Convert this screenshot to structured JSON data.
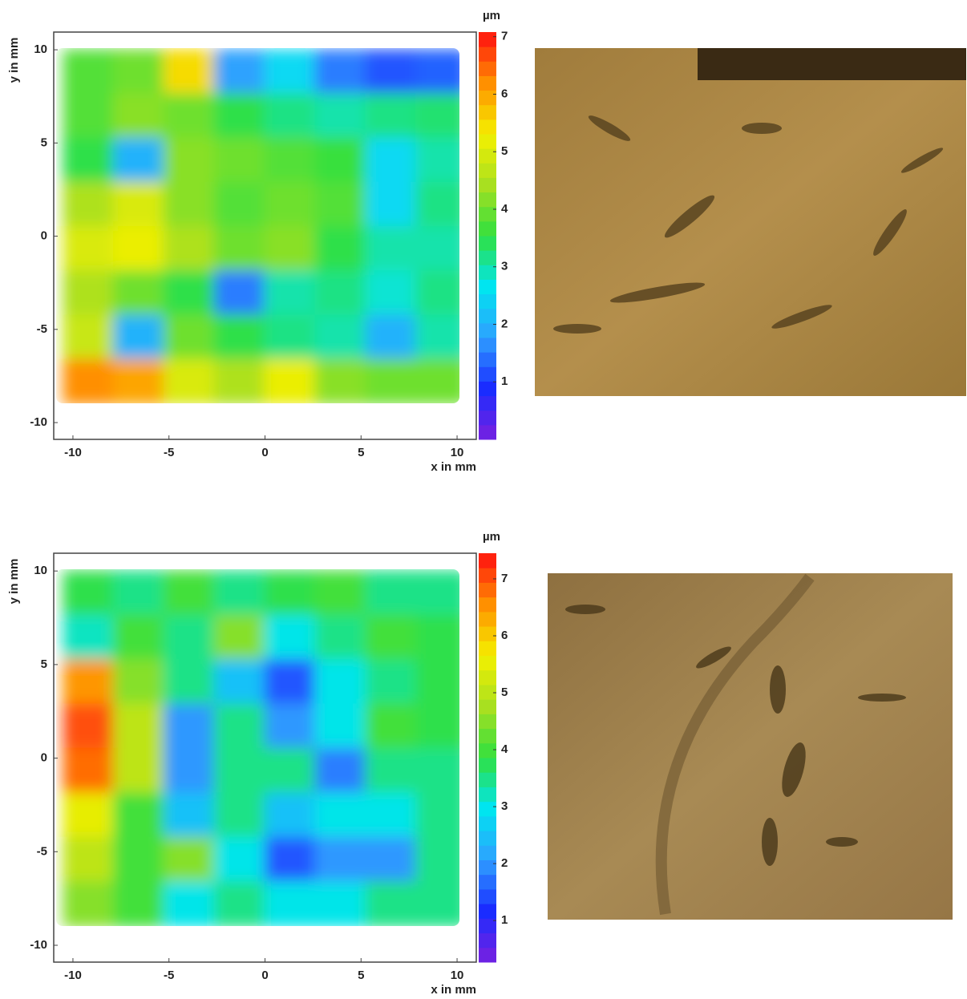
{
  "chart_data": [
    {
      "type": "heatmap",
      "xlabel": "x in mm",
      "ylabel": "y in mm",
      "colorbar_label": "µm",
      "xlim": [
        -11,
        11
      ],
      "ylim": [
        -10.9,
        10.95
      ],
      "xticks": [
        -10,
        -5,
        0,
        5,
        10
      ],
      "yticks": [
        -10,
        -5,
        0,
        5,
        10
      ],
      "clim": [
        0,
        7.08
      ],
      "cticks": [
        1,
        2,
        3,
        4,
        5,
        6,
        7
      ],
      "colormap": [
        "#7a20e0",
        "#1a2cff",
        "#2fa0ff",
        "#00e5f0",
        "#30e040",
        "#a8e020",
        "#f4f000",
        "#ff9000",
        "#ff1010"
      ],
      "x": [
        -9.1875,
        -6.5625,
        -3.9375,
        -1.3125,
        1.3125,
        3.9375,
        6.5625,
        9.1875
      ],
      "y": [
        8.8125,
        6.4375,
        4.0625,
        1.6875,
        -0.6875,
        -3.0625,
        -5.4375,
        -7.8125
      ],
      "values": [
        [
          3.8,
          4.0,
          5.5,
          1.8,
          2.5,
          1.5,
          1.2,
          1.3
        ],
        [
          3.8,
          4.2,
          4.0,
          3.5,
          3.2,
          3.0,
          3.2,
          3.3
        ],
        [
          3.5,
          2.0,
          4.2,
          4.0,
          3.8,
          3.6,
          2.5,
          3.0
        ],
        [
          4.5,
          5.0,
          4.2,
          3.8,
          4.0,
          3.8,
          2.5,
          3.2
        ],
        [
          5.0,
          5.2,
          4.5,
          4.0,
          4.2,
          3.5,
          3.0,
          3.0
        ],
        [
          4.5,
          4.0,
          3.5,
          1.5,
          3.0,
          3.2,
          2.8,
          3.2
        ],
        [
          4.8,
          2.0,
          4.0,
          3.5,
          3.2,
          3.0,
          2.0,
          3.0
        ],
        [
          6.2,
          6.0,
          5.0,
          4.5,
          5.2,
          4.2,
          4.0,
          4.0
        ]
      ]
    },
    {
      "type": "heatmap",
      "xlabel": "x in mm",
      "ylabel": "y in mm",
      "colorbar_label": "µm",
      "xlim": [
        -11,
        11
      ],
      "ylim": [
        -10.9,
        10.95
      ],
      "xticks": [
        -10,
        -5,
        0,
        5,
        10
      ],
      "yticks": [
        -10,
        -5,
        0,
        5,
        10
      ],
      "clim": [
        0.27,
        7.45
      ],
      "cticks": [
        1,
        2,
        3,
        4,
        5,
        6,
        7
      ],
      "colormap": [
        "#7a20e0",
        "#1a2cff",
        "#2fa0ff",
        "#00e5f0",
        "#30e040",
        "#a8e020",
        "#f4f000",
        "#ff9000",
        "#ff1010"
      ],
      "x": [
        -9.1875,
        -6.5625,
        -3.9375,
        -1.3125,
        1.3125,
        3.9375,
        6.5625,
        9.1875
      ],
      "y": [
        8.8125,
        6.4375,
        4.0625,
        1.6875,
        -0.6875,
        -3.0625,
        -5.4375,
        -7.8125
      ],
      "values": [
        [
          3.8,
          3.5,
          4.0,
          3.5,
          3.8,
          4.0,
          3.5,
          3.5
        ],
        [
          3.2,
          4.0,
          3.5,
          4.5,
          3.0,
          3.5,
          4.0,
          3.8
        ],
        [
          6.5,
          4.5,
          3.5,
          2.5,
          1.5,
          3.0,
          3.5,
          3.8
        ],
        [
          7.0,
          5.0,
          2.0,
          3.5,
          2.0,
          3.0,
          4.0,
          3.8
        ],
        [
          6.8,
          5.0,
          2.0,
          3.5,
          3.5,
          1.8,
          3.5,
          3.5
        ],
        [
          5.5,
          4.0,
          2.5,
          3.5,
          2.5,
          3.0,
          3.0,
          3.5
        ],
        [
          5.0,
          4.0,
          4.5,
          3.0,
          1.5,
          2.0,
          2.0,
          3.5
        ],
        [
          4.5,
          4.0,
          3.0,
          3.5,
          3.0,
          3.0,
          3.5,
          3.5
        ]
      ]
    }
  ]
}
